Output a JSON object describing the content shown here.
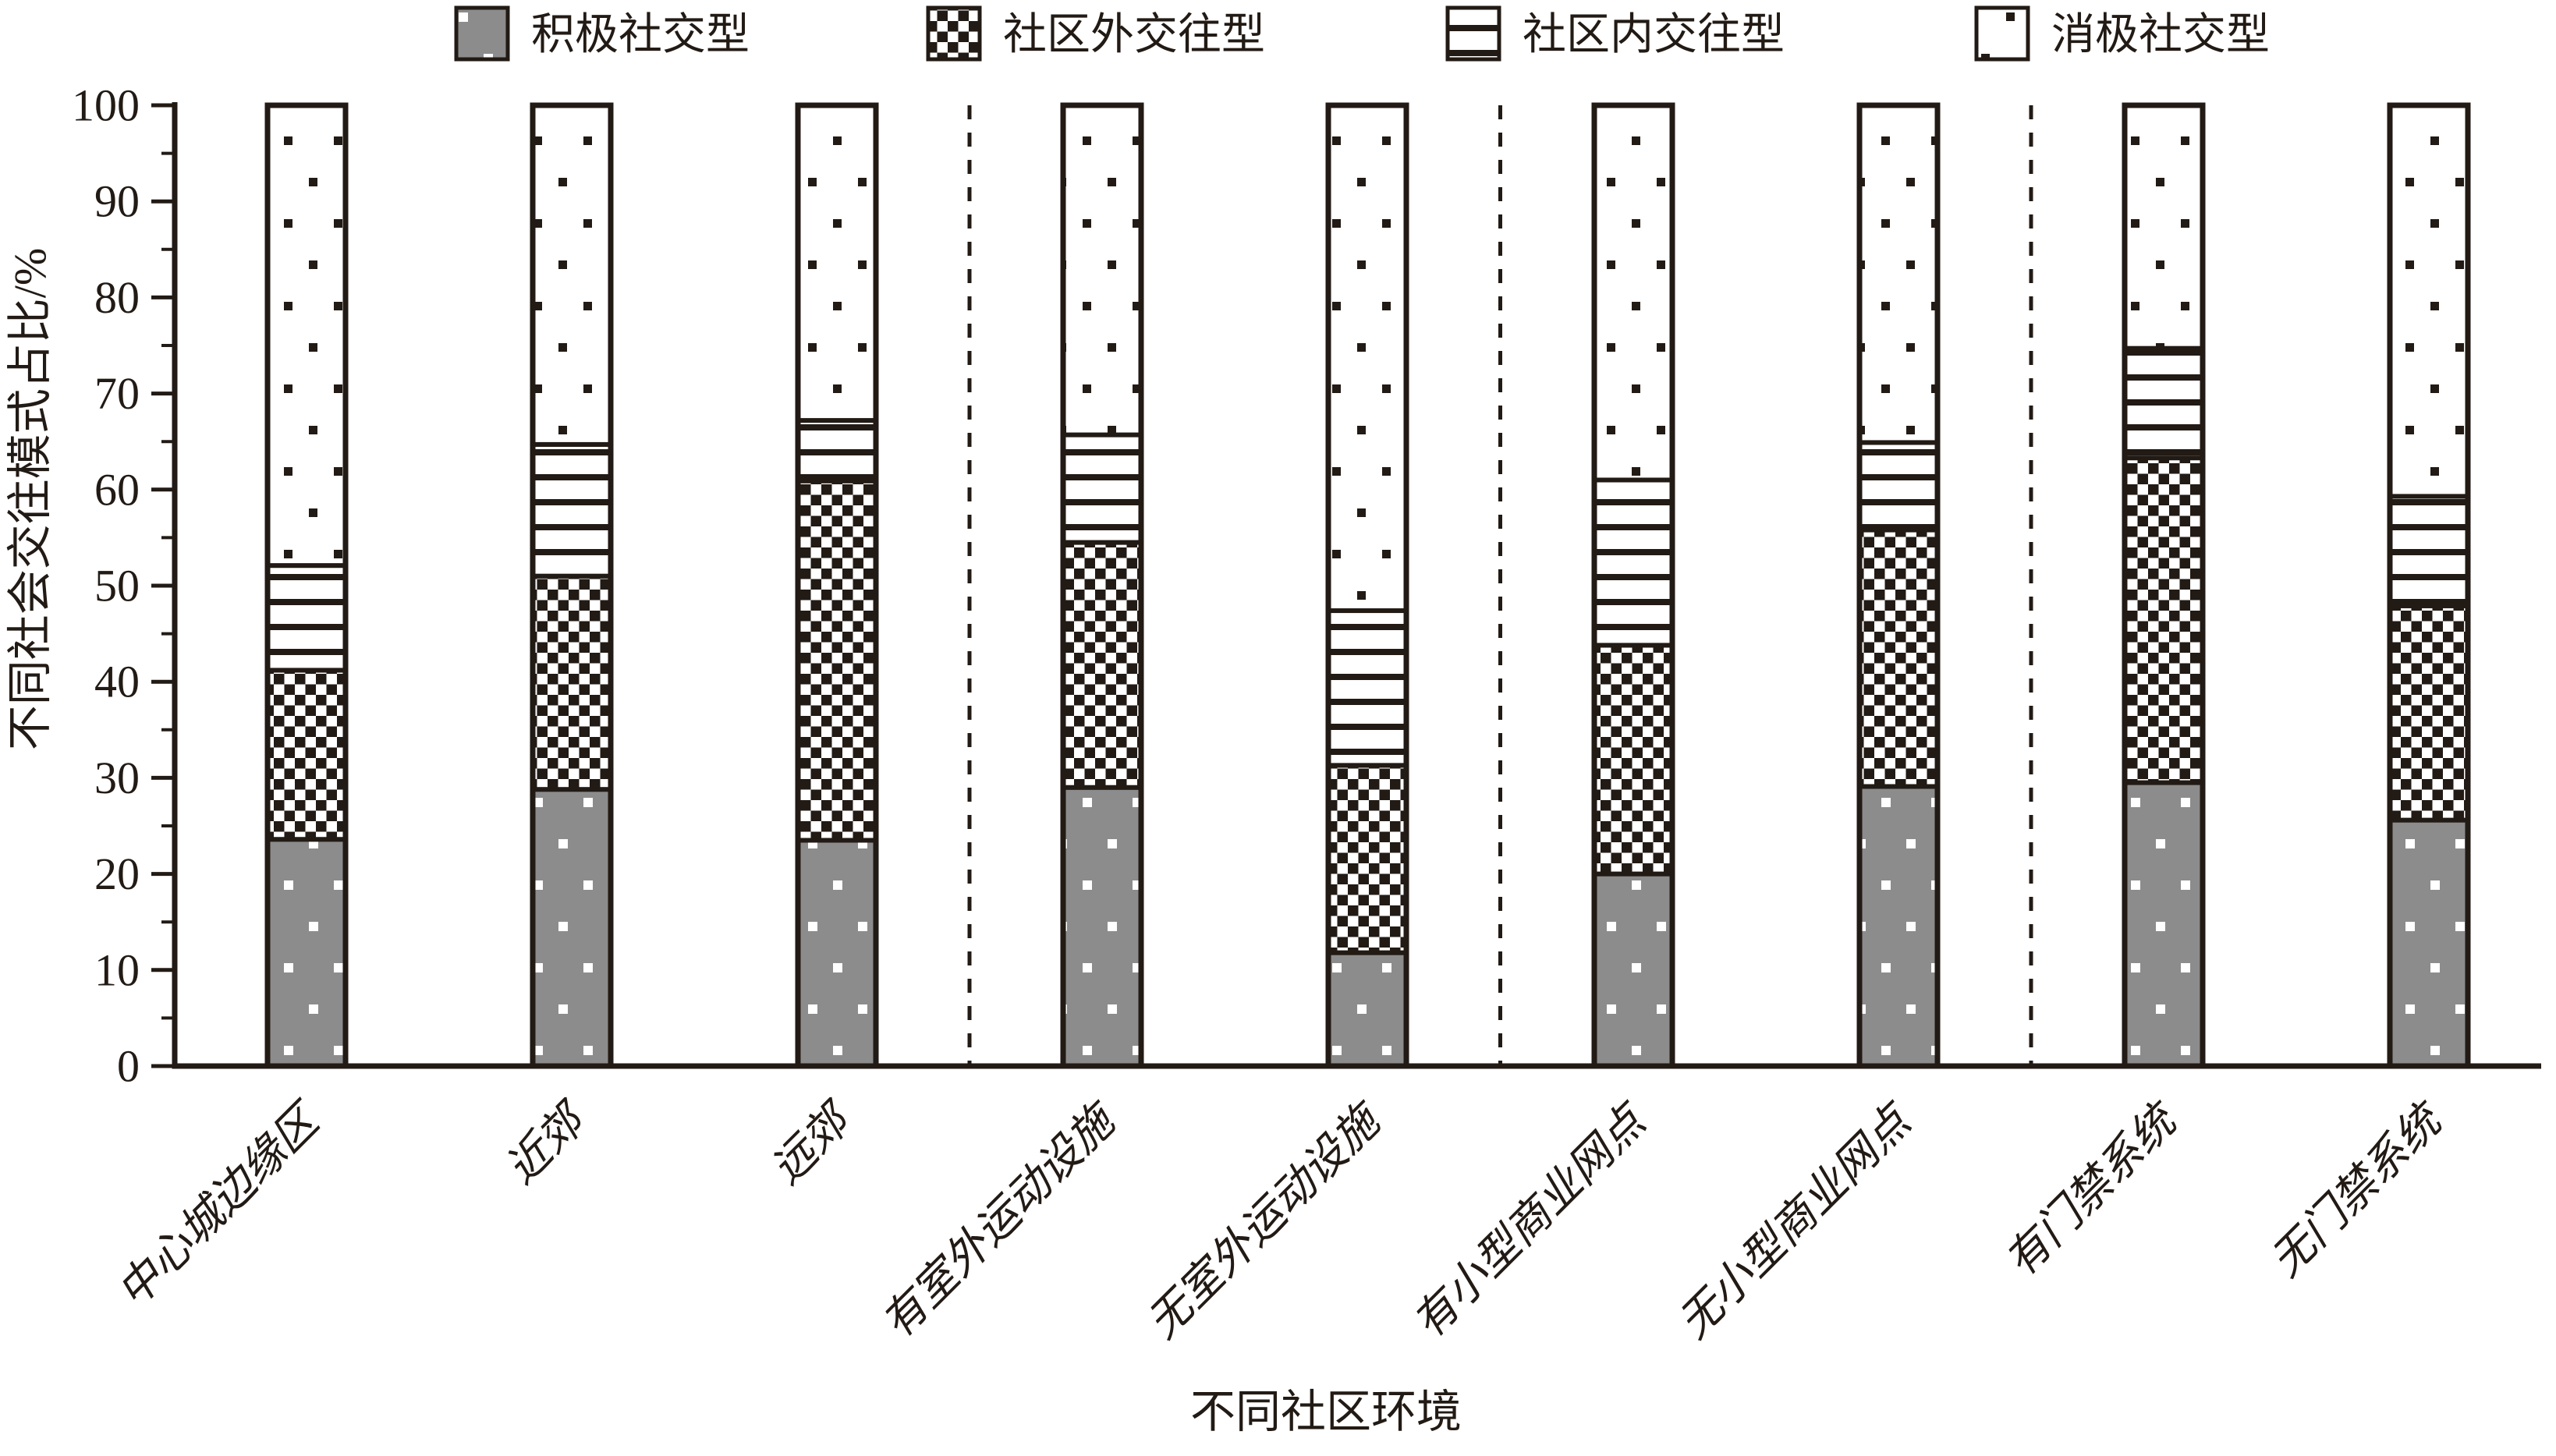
{
  "figure": {
    "xlabel": "不同社区环境",
    "ylabel": "不同社会交往模式占比/%"
  },
  "chart_data": {
    "type": "bar",
    "stacked": true,
    "orientation": "vertical",
    "categories": [
      "中心城边缘区",
      "近郊",
      "远郊",
      "有室外运动设施",
      "无室外运动设施",
      "有小型商业网点",
      "无小型商业网点",
      "有门禁系统",
      "无门禁系统"
    ],
    "series": [
      {
        "name": "积极社交型",
        "pattern": "gray-white-dots",
        "values": [
          23.6,
          28.8,
          23.5,
          29.0,
          11.8,
          20.0,
          29.1,
          29.5,
          25.6
        ]
      },
      {
        "name": "社区外交往型",
        "pattern": "checkerboard",
        "values": [
          17.6,
          22.2,
          37.4,
          25.5,
          19.5,
          23.8,
          26.7,
          33.8,
          22.3
        ]
      },
      {
        "name": "社区内交往型",
        "pattern": "horizontal-lines",
        "values": [
          10.9,
          13.7,
          6.3,
          11.2,
          16.1,
          17.2,
          9.1,
          11.4,
          11.4
        ]
      },
      {
        "name": "消极社交型",
        "pattern": "white-black-dots",
        "values": [
          47.9,
          35.3,
          32.8,
          34.3,
          52.6,
          39.0,
          35.1,
          25.3,
          40.7
        ]
      }
    ],
    "ylim": [
      0,
      100
    ],
    "y_major_tick": 10,
    "y_minor_tick": 5,
    "xlabel": "不同社区环境",
    "ylabel": "不同社会交往模式占比/%",
    "legend_position": "top",
    "grid": false,
    "group_separators_after": [
      "远郊",
      "无室外运动设施",
      "无小型商业网点"
    ],
    "colors": {
      "ink": "#221a14",
      "bar_gray": "#8c8c8c",
      "background": "#ffffff"
    }
  }
}
